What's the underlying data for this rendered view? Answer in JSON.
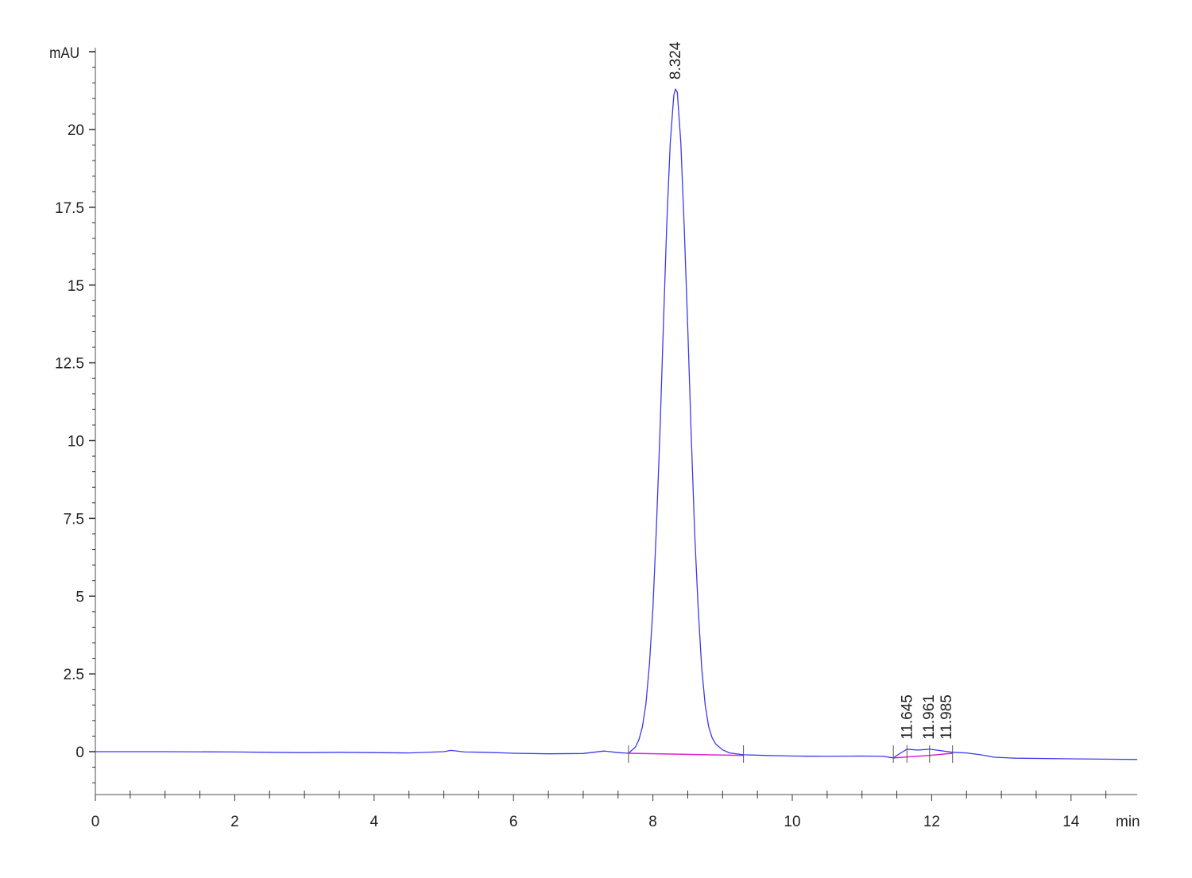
{
  "chart_data": {
    "type": "line",
    "title": "",
    "xlabel": "min",
    "ylabel": "mAU",
    "xlim": [
      0,
      14.95
    ],
    "ylim": [
      -1.38,
      22.5
    ],
    "grid": false,
    "x_ticks": [
      "0",
      "2",
      "4",
      "6",
      "8",
      "10",
      "12",
      "14"
    ],
    "y_ticks": [
      "0",
      "2.5",
      "5",
      "7.5",
      "10",
      "12.5",
      "15",
      "17.5",
      "20"
    ],
    "colors": {
      "signal": "#3a3af0",
      "baseline": "#e020d0",
      "axis": "#333333"
    },
    "series": [
      {
        "points": [
          [
            0,
            0
          ],
          [
            1,
            0
          ],
          [
            2,
            -0.01
          ],
          [
            2.5,
            -0.02
          ],
          [
            3,
            -0.03
          ],
          [
            3.5,
            -0.02
          ],
          [
            4,
            -0.03
          ],
          [
            4.5,
            -0.04
          ],
          [
            5,
            0.0
          ],
          [
            5.1,
            0.04
          ],
          [
            5.3,
            -0.01
          ],
          [
            5.6,
            -0.02
          ],
          [
            6,
            -0.05
          ],
          [
            6.5,
            -0.07
          ],
          [
            7,
            -0.06
          ],
          [
            7.3,
            0.02
          ],
          [
            7.5,
            -0.03
          ],
          [
            7.65,
            -0.05
          ],
          [
            7.75,
            0.15
          ],
          [
            7.8,
            0.39
          ],
          [
            7.85,
            0.8
          ],
          [
            7.9,
            1.53
          ],
          [
            7.95,
            2.8
          ],
          [
            8.0,
            4.6
          ],
          [
            8.05,
            7.2
          ],
          [
            8.1,
            10.2
          ],
          [
            8.15,
            13.7
          ],
          [
            8.2,
            17.0
          ],
          [
            8.25,
            19.6
          ],
          [
            8.3,
            21.1
          ],
          [
            8.324,
            21.3
          ],
          [
            8.35,
            21.2
          ],
          [
            8.4,
            19.6
          ],
          [
            8.45,
            16.8
          ],
          [
            8.5,
            13.6
          ],
          [
            8.55,
            10.2
          ],
          [
            8.6,
            7.0
          ],
          [
            8.65,
            4.6
          ],
          [
            8.7,
            2.7
          ],
          [
            8.75,
            1.5
          ],
          [
            8.8,
            0.8
          ],
          [
            8.85,
            0.45
          ],
          [
            8.9,
            0.25
          ],
          [
            9.0,
            0.06
          ],
          [
            9.1,
            -0.04
          ],
          [
            9.3,
            -0.1
          ],
          [
            9.6,
            -0.12
          ],
          [
            10,
            -0.14
          ],
          [
            10.5,
            -0.15
          ],
          [
            11,
            -0.14
          ],
          [
            11.3,
            -0.15
          ],
          [
            11.45,
            -0.2
          ],
          [
            11.55,
            -0.05
          ],
          [
            11.645,
            0.08
          ],
          [
            11.8,
            0.05
          ],
          [
            11.97,
            0.08
          ],
          [
            12.1,
            0.04
          ],
          [
            12.3,
            -0.02
          ],
          [
            12.5,
            -0.04
          ],
          [
            12.7,
            -0.1
          ],
          [
            12.9,
            -0.18
          ],
          [
            13.2,
            -0.21
          ],
          [
            14,
            -0.23
          ],
          [
            14.95,
            -0.25
          ]
        ]
      }
    ],
    "integration_baselines": [
      [
        [
          7.65,
          -0.05
        ],
        [
          9.3,
          -0.12
        ]
      ],
      [
        [
          11.45,
          -0.2
        ],
        [
          11.97,
          -0.12
        ],
        [
          12.3,
          -0.05
        ]
      ]
    ],
    "peak_markers": [
      7.65,
      9.3,
      11.45,
      11.645,
      11.97,
      12.3
    ],
    "annotations": [
      {
        "x": 8.324,
        "y": 21.3,
        "text": "8.324"
      },
      {
        "x": 11.645,
        "y": 0.08,
        "text": "11.645"
      },
      {
        "x": 11.961,
        "y": 0.08,
        "text": "11.961"
      },
      {
        "x": 11.985,
        "y": 0.08,
        "text": "11.985"
      }
    ]
  }
}
